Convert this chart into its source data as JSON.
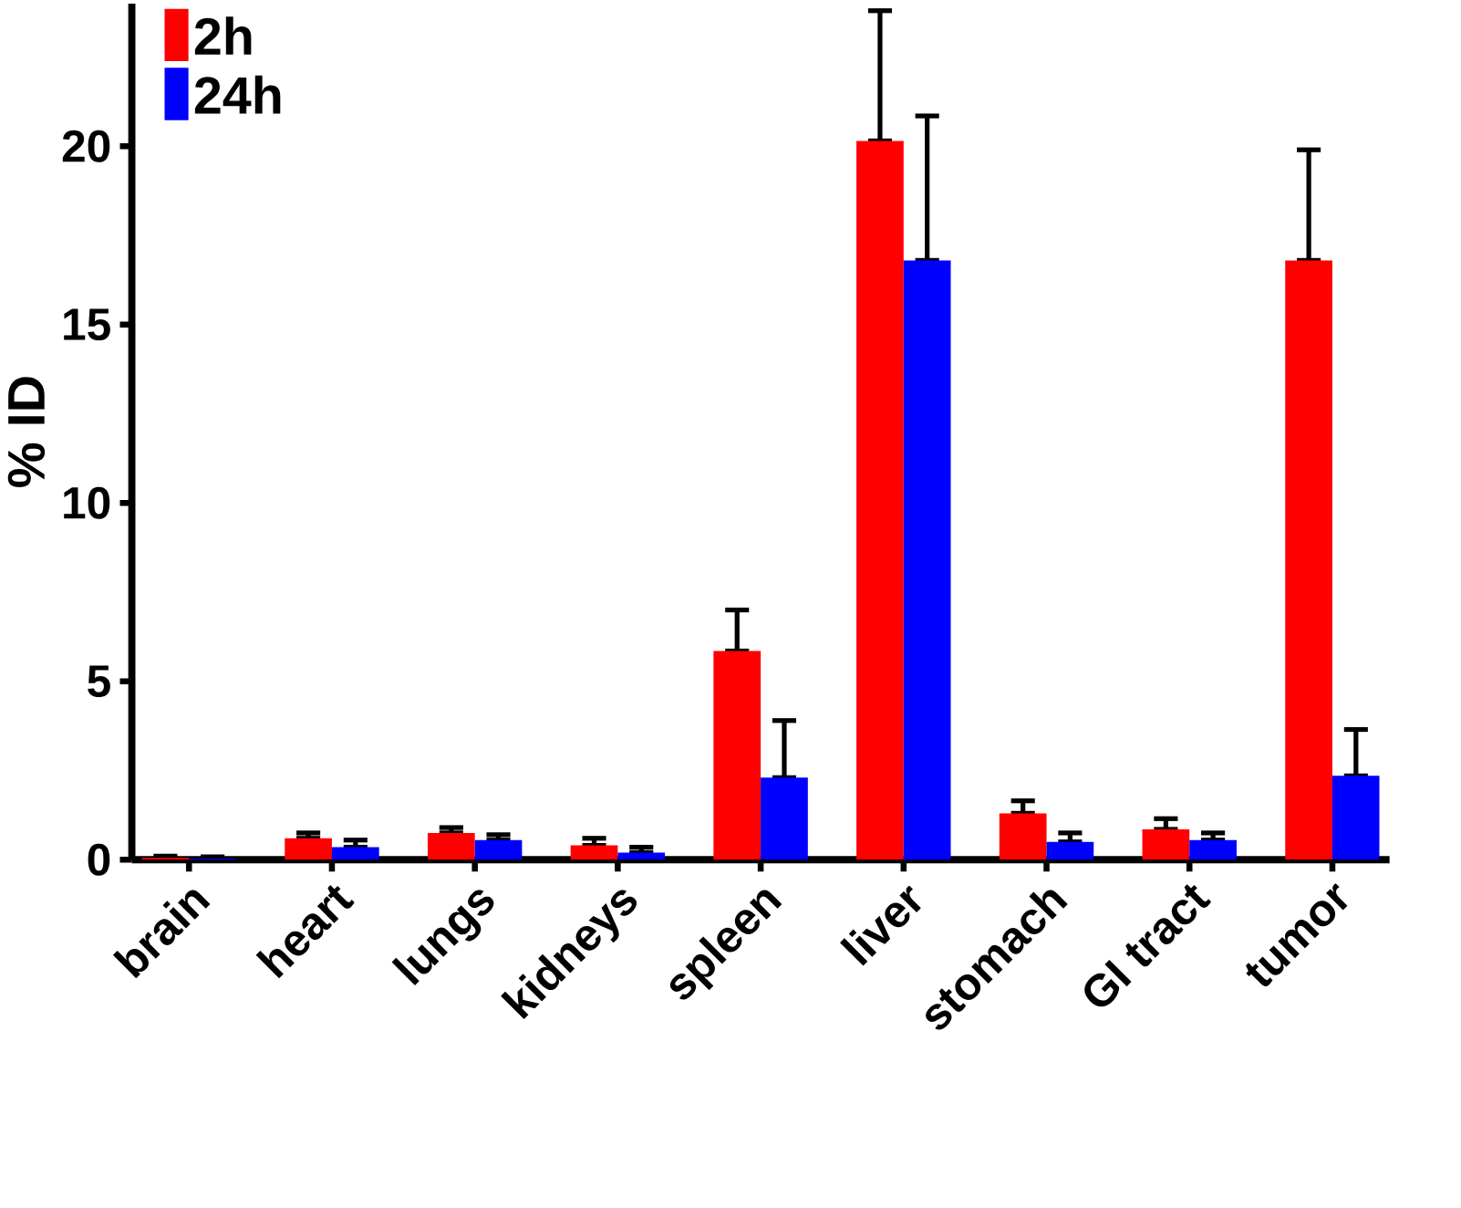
{
  "chart_data": {
    "type": "bar",
    "ylabel": "% ID",
    "categories": [
      "brain",
      "heart",
      "lungs",
      "kidneys",
      "spleen",
      "liver",
      "stomach",
      "GI tract",
      "tumor"
    ],
    "series": [
      {
        "name": "2h",
        "color": "#ff0000",
        "values": [
          0.05,
          0.6,
          0.75,
          0.4,
          5.85,
          20.15,
          1.3,
          0.85,
          16.8
        ],
        "errors": [
          [
            0.05,
            0.1
          ],
          [
            0.6,
            0.75
          ],
          [
            0.75,
            0.9
          ],
          [
            0.4,
            0.6
          ],
          [
            5.85,
            7.0
          ],
          [
            20.15,
            23.8
          ],
          [
            1.3,
            1.65
          ],
          [
            0.85,
            1.15
          ],
          [
            16.8,
            19.9
          ]
        ]
      },
      {
        "name": "24h",
        "color": "#0000ff",
        "values": [
          0.03,
          0.35,
          0.55,
          0.2,
          2.3,
          16.8,
          0.5,
          0.55,
          2.35
        ],
        "errors": [
          [
            0.03,
            0.08
          ],
          [
            0.35,
            0.55
          ],
          [
            0.55,
            0.7
          ],
          [
            0.2,
            0.35
          ],
          [
            2.3,
            3.9
          ],
          [
            16.8,
            20.85
          ],
          [
            0.5,
            0.75
          ],
          [
            0.55,
            0.75
          ],
          [
            2.35,
            3.65
          ]
        ]
      }
    ],
    "ylim": [
      0,
      24
    ],
    "yticks": [
      0,
      5,
      10,
      15,
      20
    ],
    "legend": "top left",
    "grid": false
  }
}
